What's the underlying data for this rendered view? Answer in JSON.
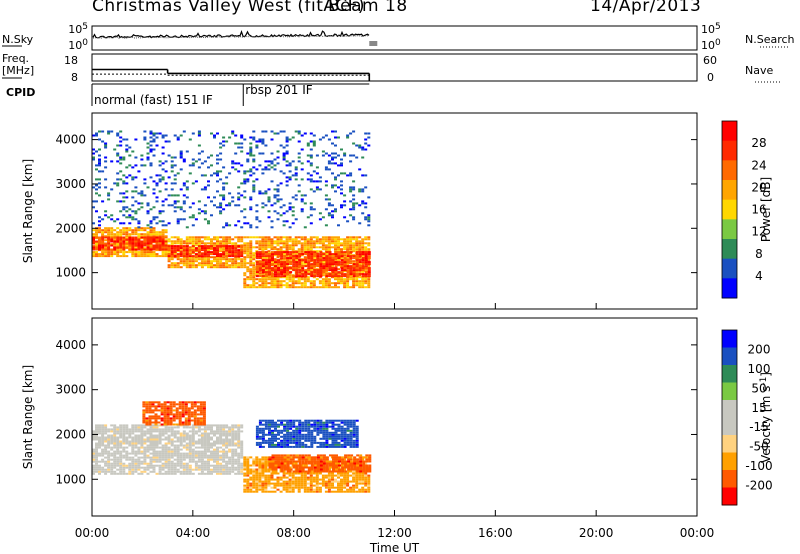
{
  "header": {
    "station": "Christmas Valley West (fitACF)",
    "beam": "Beam 18",
    "date": "14/Apr/2013"
  },
  "summary": {
    "left_labels": {
      "nsky": "N.Sky",
      "freq_line1": "Freq.",
      "freq_line2": "[MHz]",
      "cpid": "CPID"
    },
    "right_labels": {
      "nsearch": "N.Search",
      "nave": "Nave"
    },
    "noise_ticks": [
      "10^5",
      "10^0"
    ],
    "noise_ticks_right": [
      "10^5",
      "10^0"
    ],
    "freq_ticks": [
      "18",
      "8"
    ],
    "nave_ticks": [
      "60",
      "0"
    ],
    "cpid_segments": [
      {
        "label": "normal (fast) 151 IF",
        "start_h": 0.0,
        "end_h": 6.0
      },
      {
        "label": "rbsp 201 IF",
        "start_h": 6.0,
        "end_h": 11.0
      }
    ],
    "freq_mhz": [
      {
        "start_h": 0.0,
        "end_h": 3.0,
        "value": 13.0
      },
      {
        "start_h": 3.0,
        "end_h": 11.0,
        "value": 11.3
      }
    ],
    "nave": [
      {
        "start_h": 0.0,
        "end_h": 3.0,
        "value": 18
      },
      {
        "start_h": 3.0,
        "end_h": 11.0,
        "value": 15
      }
    ]
  },
  "colors": {
    "power": [
      "#0000ff",
      "#1a50c0",
      "#2e8b57",
      "#7ac943",
      "#ffd700",
      "#ffa500",
      "#ff6a00",
      "#ff2a00",
      "#ff0000"
    ],
    "velocity": [
      "#ff0000",
      "#ff5a00",
      "#ffa000",
      "#ffd280",
      "#c8c8c0",
      "#c8c8c0",
      "#7ac943",
      "#2e8b57",
      "#1a50c0",
      "#0000ff"
    ]
  },
  "chart_data": [
    {
      "type": "heatmap",
      "panel": "power",
      "ylabel": "Slant Range [km]",
      "ylim": [
        180,
        4600
      ],
      "yticks": [
        1000,
        2000,
        3000,
        4000
      ],
      "xlim_hours": [
        0,
        24
      ],
      "colorbar_label": "Power [dB]",
      "colorbar_range": [
        0,
        32
      ],
      "colorbar_ticks": [
        "28",
        "24",
        "20",
        "16",
        "12",
        "8",
        "4"
      ],
      "data_end_hour": 11.0,
      "bands": [
        {
          "t0": 0.0,
          "t1": 3.0,
          "r0": 1350,
          "r1": 2000,
          "value": 22
        },
        {
          "t0": 0.0,
          "t1": 3.0,
          "r0": 1500,
          "r1": 1800,
          "value": 30
        },
        {
          "t0": 3.0,
          "t1": 6.0,
          "r0": 1100,
          "r1": 1800,
          "value": 24
        },
        {
          "t0": 3.0,
          "t1": 6.0,
          "r0": 1350,
          "r1": 1600,
          "value": 30
        },
        {
          "t0": 6.0,
          "t1": 11.0,
          "r0": 650,
          "r1": 1800,
          "value": 22
        },
        {
          "t0": 6.5,
          "t1": 11.0,
          "r0": 900,
          "r1": 1450,
          "value": 30
        },
        {
          "t0": 0.0,
          "t1": 11.0,
          "r0": 2000,
          "r1": 4200,
          "value": 6
        }
      ]
    },
    {
      "type": "heatmap",
      "panel": "velocity",
      "ylabel": "Slant Range [km]",
      "ylim": [
        180,
        4600
      ],
      "yticks": [
        1000,
        2000,
        3000,
        4000
      ],
      "xlim_hours": [
        0,
        24
      ],
      "xlabel": "Time UT",
      "xticks": [
        "00:00",
        "04:00",
        "08:00",
        "12:00",
        "16:00",
        "20:00",
        "00:00"
      ],
      "colorbar_label": "Velocity [m s^-1]",
      "colorbar_ticks": [
        "200",
        "100",
        "50",
        "15",
        "-15",
        "-50",
        "-100",
        "-200"
      ],
      "data_end_hour": 11.0,
      "bands": [
        {
          "t0": 0.0,
          "t1": 6.0,
          "r0": 1100,
          "r1": 2200,
          "value": 0
        },
        {
          "t0": 6.0,
          "t1": 11.0,
          "r0": 700,
          "r1": 1500,
          "value": -60
        },
        {
          "t0": 7.0,
          "t1": 11.0,
          "r0": 1150,
          "r1": 1550,
          "value": -120
        },
        {
          "t0": 2.0,
          "t1": 4.5,
          "r0": 2200,
          "r1": 2700,
          "value": -180
        },
        {
          "t0": 6.5,
          "t1": 10.5,
          "r0": 1700,
          "r1": 2300,
          "value": 150
        }
      ]
    }
  ]
}
